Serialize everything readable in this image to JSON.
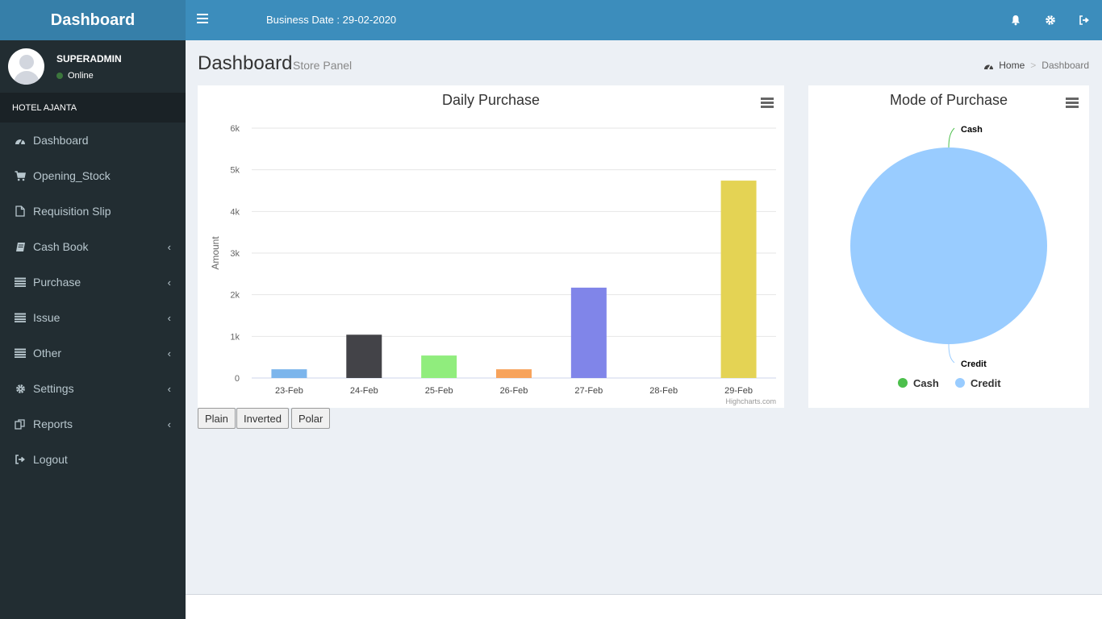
{
  "app": {
    "logo_title": "Dashboard"
  },
  "user": {
    "name": "SUPERADMIN",
    "status": "Online"
  },
  "hotel": {
    "name": "HOTEL AJANTA"
  },
  "sidebar": {
    "items": [
      {
        "label": "Dashboard",
        "icon": "dashboard-icon",
        "has_submenu": false
      },
      {
        "label": "Opening_Stock",
        "icon": "cart-icon",
        "has_submenu": false
      },
      {
        "label": "Requisition Slip",
        "icon": "document-icon",
        "has_submenu": false
      },
      {
        "label": "Cash Book",
        "icon": "book-icon",
        "has_submenu": true
      },
      {
        "label": "Purchase",
        "icon": "list-icon",
        "has_submenu": true
      },
      {
        "label": "Issue",
        "icon": "list-icon",
        "has_submenu": true
      },
      {
        "label": "Other",
        "icon": "list-icon",
        "has_submenu": true
      },
      {
        "label": "Settings",
        "icon": "gear-icon",
        "has_submenu": true
      },
      {
        "label": "Reports",
        "icon": "reports-icon",
        "has_submenu": true
      },
      {
        "label": "Logout",
        "icon": "logout-icon",
        "has_submenu": false
      }
    ]
  },
  "topbar": {
    "business_date": "Business Date : 29-02-2020",
    "icons": [
      "bell-icon",
      "gear-icon",
      "logout-icon"
    ]
  },
  "page": {
    "title": "Dashboard",
    "subtitle": "Store Panel",
    "breadcrumb": {
      "home": "Home",
      "current": "Dashboard"
    }
  },
  "chart_buttons": {
    "plain": "Plain",
    "inverted": "Inverted",
    "polar": "Polar"
  },
  "credits": "Highcharts.com",
  "chart_data": [
    {
      "type": "bar",
      "title": "Daily Purchase",
      "ylabel": "Amount",
      "xlabel": "",
      "ylim": [
        0,
        6000
      ],
      "y_ticks": [
        "0",
        "1k",
        "2k",
        "3k",
        "4k",
        "5k",
        "6k"
      ],
      "categories": [
        "23-Feb",
        "24-Feb",
        "25-Feb",
        "26-Feb",
        "27-Feb",
        "28-Feb",
        "29-Feb"
      ],
      "values": [
        210,
        1040,
        540,
        210,
        2170,
        0,
        4740
      ],
      "colors": [
        "#7cb5ec",
        "#434348",
        "#90ed7d",
        "#f7a35c",
        "#8085e9",
        "#f15c80",
        "#e4d354"
      ],
      "grid": true
    },
    {
      "type": "pie",
      "title": "Mode of Purchase",
      "slices": [
        {
          "name": "Cash",
          "value": 0,
          "color": "#4cbf4c"
        },
        {
          "name": "Credit",
          "value": 100,
          "color": "#99ccff"
        }
      ],
      "legend": "bottom"
    }
  ]
}
